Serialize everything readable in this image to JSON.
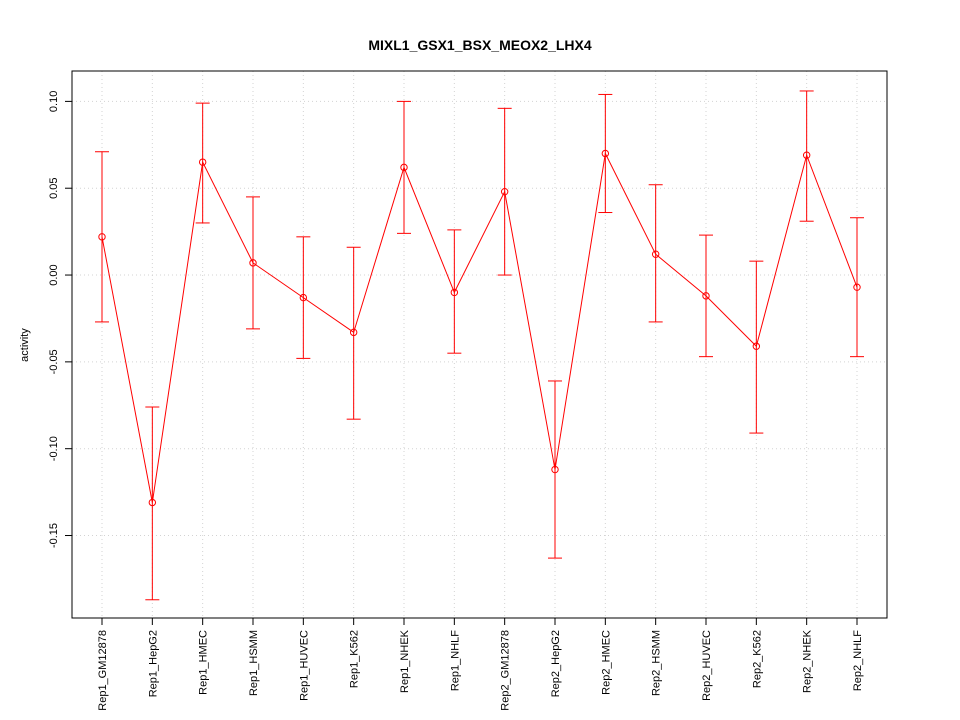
{
  "chart_data": {
    "type": "line",
    "title": "MIXL1_GSX1_BSX_MEOX2_LHX4",
    "xlabel": "",
    "ylabel": "activity",
    "categories": [
      "Rep1_GM12878",
      "Rep1_HepG2",
      "Rep1_HMEC",
      "Rep1_HSMM",
      "Rep1_HUVEC",
      "Rep1_K562",
      "Rep1_NHEK",
      "Rep1_NHLF",
      "Rep2_GM12878",
      "Rep2_HepG2",
      "Rep2_HMEC",
      "Rep2_HSMM",
      "Rep2_HUVEC",
      "Rep2_K562",
      "Rep2_NHEK",
      "Rep2_NHLF"
    ],
    "series": [
      {
        "values": [
          0.022,
          -0.131,
          0.065,
          0.007,
          -0.013,
          -0.033,
          0.062,
          -0.01,
          0.048,
          -0.112,
          0.07,
          0.012,
          -0.012,
          -0.041,
          0.069,
          -0.007
        ],
        "upper": [
          0.071,
          -0.076,
          0.099,
          0.045,
          0.022,
          0.016,
          0.1,
          0.026,
          0.096,
          -0.061,
          0.104,
          0.052,
          0.023,
          0.008,
          0.106,
          0.033
        ],
        "lower": [
          -0.027,
          -0.187,
          0.03,
          -0.031,
          -0.048,
          -0.083,
          0.024,
          -0.045,
          0.0,
          -0.163,
          0.036,
          -0.027,
          -0.047,
          -0.091,
          0.031,
          -0.047
        ]
      }
    ],
    "yticks": [
      -0.15,
      -0.1,
      -0.05,
      0.0,
      0.05,
      0.1
    ],
    "ytick_labels": [
      "-0.15",
      "-0.10",
      "-0.05",
      "0.00",
      "0.05",
      "0.10"
    ],
    "ylim": [
      -0.1975,
      0.1175
    ],
    "grid": true,
    "colors": {
      "series": "#ff0000",
      "grid": "#d3d3d3",
      "axis": "#000000"
    }
  }
}
